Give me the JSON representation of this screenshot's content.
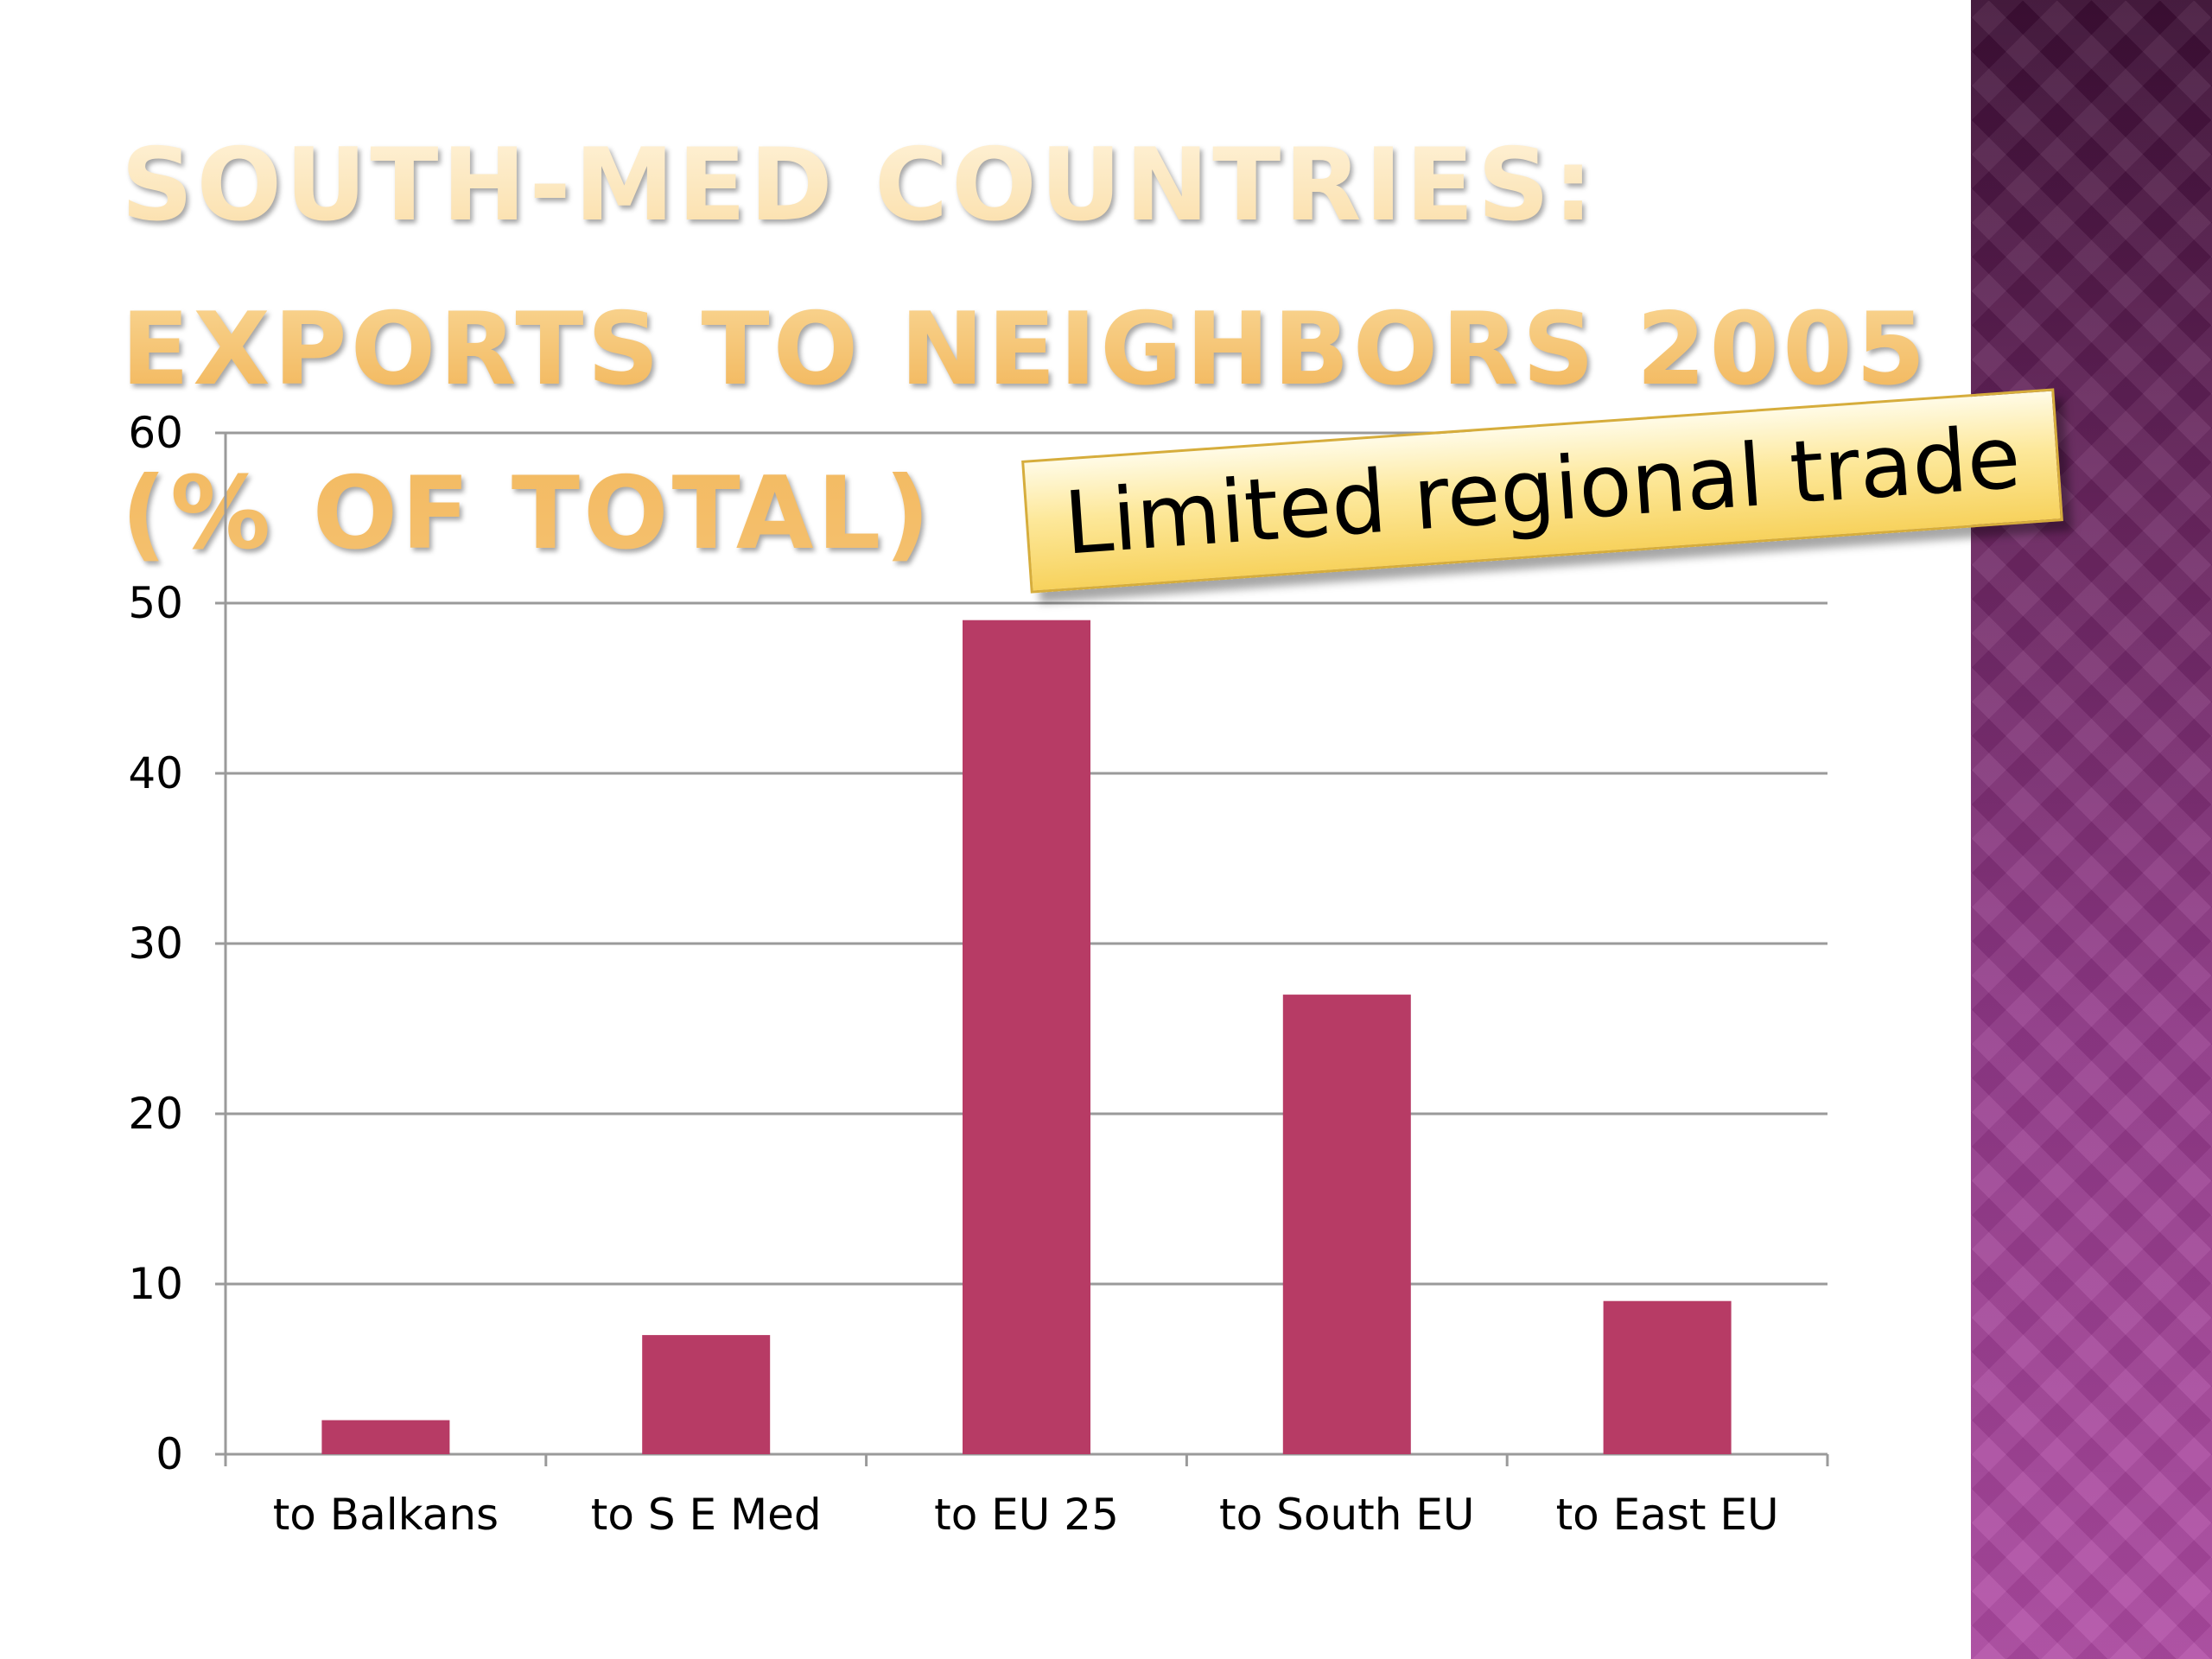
{
  "slide": {
    "title": "South-Med countries: exports to neighbors 2005 (% of total)"
  },
  "annotation": {
    "text": "Limited regional trade"
  },
  "colors": {
    "bar": "#b73b65",
    "gridline": "#9a9a9a",
    "title": "#f5c271",
    "annotation_fill": "#fde89a",
    "side_band": "#93398a"
  },
  "chart_data": {
    "type": "bar",
    "categories": [
      "to Balkans",
      "to S E Med",
      "to EU 25",
      "to South EU",
      "to East EU"
    ],
    "series": [
      {
        "values": [
          2,
          7,
          49,
          27,
          9
        ]
      }
    ],
    "title": "",
    "xlabel": "",
    "ylabel": "",
    "ylim": [
      0,
      60
    ],
    "yticks": [
      0,
      10,
      20,
      30,
      40,
      50,
      60
    ],
    "grid": true,
    "legend": "none"
  }
}
